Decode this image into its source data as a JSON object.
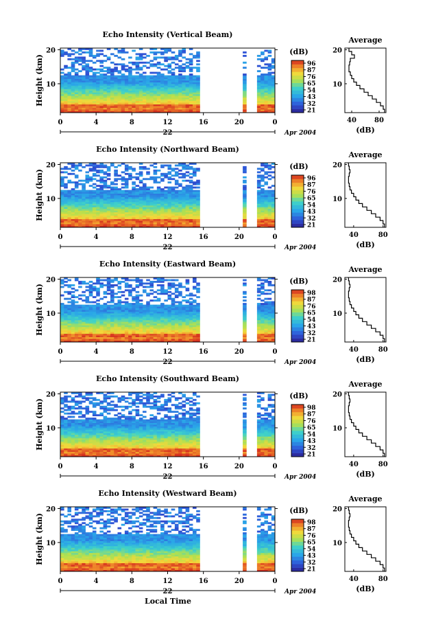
{
  "figure": {
    "bottom_xlabel": "Local Time",
    "day_label": "22",
    "month_label": "Apr 2004",
    "ylabel": "Height (km)",
    "colorbar_title": "(dB)",
    "profile_title": "Average",
    "profile_xlabel": "(dB)"
  },
  "chart_data": [
    {
      "type": "heatmap",
      "title": "Echo Intensity (Vertical Beam)",
      "xlabel": "",
      "ylabel": "Height (km)",
      "x_ticks": [
        "0",
        "4",
        "8",
        "12",
        "16",
        "20",
        "0"
      ],
      "x_range": [
        0,
        24
      ],
      "y_ticks": [
        "20",
        "10"
      ],
      "y_range": [
        1.5,
        20.5
      ],
      "colorbar_ticks": [
        "96",
        "87",
        "76",
        "65",
        "54",
        "43",
        "32",
        "21"
      ],
      "data_gaps_hours": [
        [
          15.5,
          20.4
        ],
        [
          20.6,
          22.2
        ]
      ],
      "profile": {
        "title": "Average",
        "xlabel": "(dB)",
        "x_ticks": [
          "40",
          "80"
        ],
        "x_range": [
          30,
          90
        ],
        "y_ticks": [
          "20",
          "10"
        ],
        "heights_km": [
          2,
          3,
          4,
          5,
          6,
          7,
          8,
          9,
          10,
          11,
          12,
          13,
          14,
          15,
          16,
          17,
          18,
          19,
          20
        ],
        "values_db": [
          88,
          86,
          82,
          76,
          70,
          64,
          58,
          52,
          47,
          43,
          40,
          38,
          36,
          36,
          37,
          38,
          44,
          40,
          36
        ]
      }
    },
    {
      "type": "heatmap",
      "title": "Echo Intensity (Northward Beam)",
      "xlabel": "",
      "ylabel": "Height (km)",
      "x_ticks": [
        "0",
        "4",
        "8",
        "12",
        "16",
        "20",
        "0"
      ],
      "x_range": [
        0,
        24
      ],
      "y_ticks": [
        "20",
        "10"
      ],
      "y_range": [
        1.5,
        20.5
      ],
      "colorbar_ticks": [
        "96",
        "87",
        "76",
        "65",
        "54",
        "43",
        "32",
        "21"
      ],
      "data_gaps_hours": [
        [
          15.5,
          20.4
        ],
        [
          20.6,
          22.2
        ]
      ],
      "profile": {
        "title": "Average",
        "xlabel": "(dB)",
        "x_ticks": [
          "40",
          "80"
        ],
        "x_range": [
          28,
          84
        ],
        "y_ticks": [
          "20",
          "10"
        ],
        "heights_km": [
          2,
          3,
          4,
          5,
          6,
          7,
          8,
          9,
          10,
          11,
          12,
          13,
          14,
          15,
          16,
          17,
          18,
          19,
          20
        ],
        "values_db": [
          82,
          80,
          76,
          70,
          64,
          58,
          52,
          47,
          43,
          40,
          37,
          35,
          34,
          33,
          33,
          34,
          35,
          34,
          33
        ]
      }
    },
    {
      "type": "heatmap",
      "title": "Echo Intensity (Eastward Beam)",
      "xlabel": "",
      "ylabel": "Height (km)",
      "x_ticks": [
        "0",
        "4",
        "8",
        "12",
        "16",
        "20",
        "0"
      ],
      "x_range": [
        0,
        24
      ],
      "y_ticks": [
        "20",
        "10"
      ],
      "y_range": [
        1.5,
        20.5
      ],
      "colorbar_ticks": [
        "98",
        "87",
        "76",
        "65",
        "54",
        "43",
        "32",
        "21"
      ],
      "data_gaps_hours": [
        [
          15.5,
          20.4
        ],
        [
          20.6,
          22.2
        ]
      ],
      "profile": {
        "title": "Average",
        "xlabel": "(dB)",
        "x_ticks": [
          "40",
          "80"
        ],
        "x_range": [
          28,
          84
        ],
        "y_ticks": [
          "20",
          "10"
        ],
        "heights_km": [
          2,
          3,
          4,
          5,
          6,
          7,
          8,
          9,
          10,
          11,
          12,
          13,
          14,
          15,
          16,
          17,
          18,
          19,
          20
        ],
        "values_db": [
          82,
          80,
          76,
          70,
          64,
          58,
          52,
          47,
          43,
          40,
          37,
          35,
          34,
          33,
          33,
          34,
          35,
          34,
          33
        ]
      }
    },
    {
      "type": "heatmap",
      "title": "Echo Intensity (Southward Beam)",
      "xlabel": "",
      "ylabel": "Height (km)",
      "x_ticks": [
        "0",
        "4",
        "8",
        "12",
        "16",
        "20",
        "0"
      ],
      "x_range": [
        0,
        24
      ],
      "y_ticks": [
        "20",
        "10"
      ],
      "y_range": [
        1.5,
        20.5
      ],
      "colorbar_ticks": [
        "98",
        "87",
        "76",
        "65",
        "54",
        "43",
        "32",
        "21"
      ],
      "data_gaps_hours": [
        [
          15.5,
          20.4
        ],
        [
          20.6,
          22.2
        ]
      ],
      "profile": {
        "title": "Average",
        "xlabel": "(dB)",
        "x_ticks": [
          "40",
          "80"
        ],
        "x_range": [
          28,
          84
        ],
        "y_ticks": [
          "20",
          "10"
        ],
        "heights_km": [
          2,
          3,
          4,
          5,
          6,
          7,
          8,
          9,
          10,
          11,
          12,
          13,
          14,
          15,
          16,
          17,
          18,
          19,
          20
        ],
        "values_db": [
          82,
          80,
          76,
          70,
          64,
          58,
          52,
          47,
          43,
          40,
          37,
          35,
          34,
          33,
          33,
          34,
          35,
          34,
          33
        ]
      }
    },
    {
      "type": "heatmap",
      "title": "Echo Intensity (Westward Beam)",
      "xlabel": "Local Time",
      "ylabel": "Height (km)",
      "x_ticks": [
        "0",
        "4",
        "8",
        "12",
        "16",
        "20",
        "0"
      ],
      "x_range": [
        0,
        24
      ],
      "y_ticks": [
        "20",
        "10"
      ],
      "y_range": [
        1.5,
        20.5
      ],
      "colorbar_ticks": [
        "98",
        "87",
        "76",
        "65",
        "54",
        "43",
        "32",
        "21"
      ],
      "data_gaps_hours": [
        [
          15.5,
          20.4
        ],
        [
          20.6,
          22.2
        ]
      ],
      "profile": {
        "title": "Average",
        "xlabel": "(dB)",
        "x_ticks": [
          "40",
          "80"
        ],
        "x_range": [
          28,
          84
        ],
        "y_ticks": [
          "20",
          "10"
        ],
        "heights_km": [
          2,
          3,
          4,
          5,
          6,
          7,
          8,
          9,
          10,
          11,
          12,
          13,
          14,
          15,
          16,
          17,
          18,
          19,
          20
        ],
        "values_db": [
          82,
          80,
          76,
          70,
          64,
          58,
          52,
          47,
          43,
          40,
          37,
          35,
          34,
          33,
          33,
          34,
          35,
          34,
          33
        ]
      }
    }
  ]
}
